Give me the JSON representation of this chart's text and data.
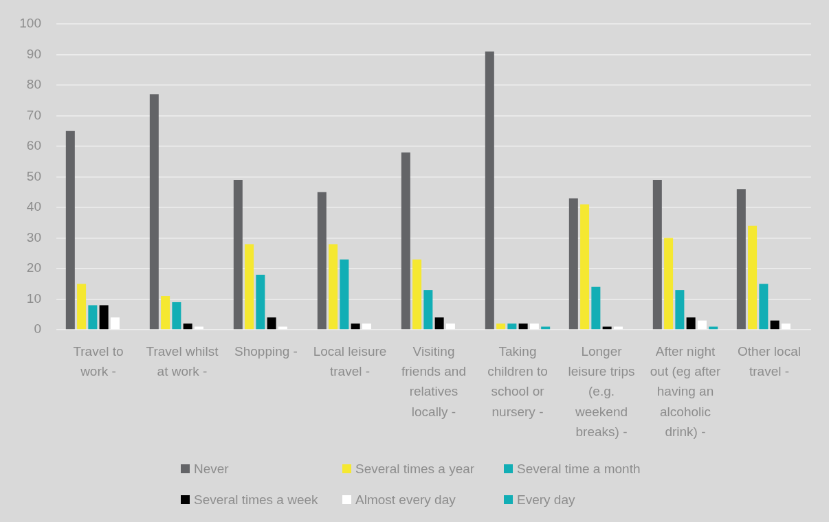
{
  "chart_data": {
    "type": "bar",
    "categories": [
      "Travel to work -",
      "Travel whilst at work -",
      "Shopping -",
      "Local leisure travel -",
      "Visiting friends and relatives locally -",
      "Taking children to school or nursery -",
      "Longer leisure trips (e.g. weekend breaks) -",
      "After night out (eg after having an alcoholic drink) -",
      "Other local travel -"
    ],
    "series": [
      {
        "name": "Never",
        "color": "#636467",
        "values": [
          65,
          77,
          49,
          45,
          58,
          91,
          43,
          49,
          46
        ]
      },
      {
        "name": "Several times a year",
        "color": "#f5e831",
        "values": [
          15,
          11,
          28,
          28,
          23,
          2,
          41,
          30,
          34
        ]
      },
      {
        "name": "Several time a month",
        "color": "#12aeb5",
        "values": [
          8,
          9,
          18,
          23,
          13,
          2,
          14,
          13,
          15
        ]
      },
      {
        "name": "Several times a week",
        "color": "#000000",
        "values": [
          8,
          2,
          4,
          2,
          4,
          2,
          1,
          4,
          3
        ]
      },
      {
        "name": "Almost every day",
        "color": "#ffffff",
        "values": [
          4,
          1,
          1,
          2,
          2,
          2,
          1,
          3,
          2
        ]
      },
      {
        "name": "Every day",
        "color": "#12aeb5",
        "values": [
          0,
          0,
          0,
          0,
          0,
          1,
          0,
          1,
          0
        ]
      }
    ],
    "ylim": [
      0,
      100
    ],
    "yticks": [
      0,
      10,
      20,
      30,
      40,
      50,
      60,
      70,
      80,
      90,
      100
    ],
    "grid": "y",
    "legend": "bottom"
  }
}
